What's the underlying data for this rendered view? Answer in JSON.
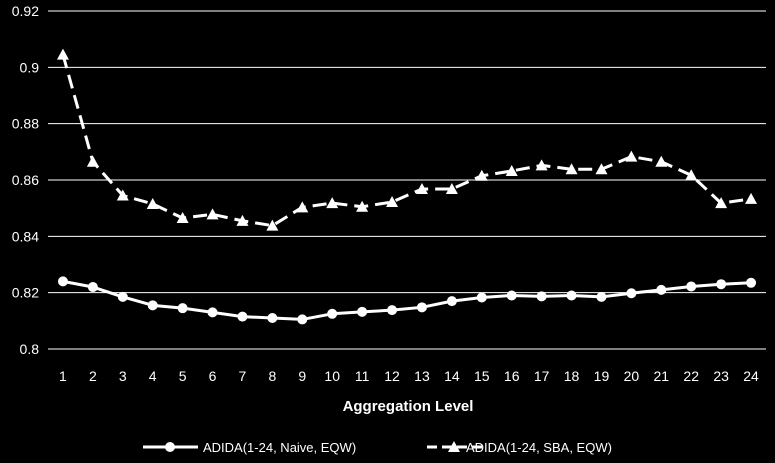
{
  "chart_data": {
    "type": "line",
    "title": "",
    "xlabel": "Aggregation Level",
    "ylabel": "",
    "x": [
      1,
      2,
      3,
      4,
      5,
      6,
      7,
      8,
      9,
      10,
      11,
      12,
      13,
      14,
      15,
      16,
      17,
      18,
      19,
      20,
      21,
      22,
      23,
      24
    ],
    "ylim": [
      0.8,
      0.92
    ],
    "yticks": [
      "0.8",
      "0.82",
      "0.84",
      "0.86",
      "0.88",
      "0.9",
      "0.92"
    ],
    "grid": "horizontal",
    "legend_position": "bottom",
    "series": [
      {
        "name": "ADIDA(1-24, Naive, EQW)",
        "marker": "circle",
        "line_style": "solid",
        "color": "#ffffff",
        "values": [
          0.824,
          0.822,
          0.8185,
          0.8155,
          0.8145,
          0.813,
          0.8115,
          0.811,
          0.8105,
          0.8125,
          0.8132,
          0.8138,
          0.8148,
          0.817,
          0.8183,
          0.819,
          0.8187,
          0.819,
          0.8185,
          0.8198,
          0.821,
          0.8222,
          0.823,
          0.8235
        ]
      },
      {
        "name": "ADIDA(1-24, SBA, EQW)",
        "marker": "triangle",
        "line_style": "dashed",
        "color": "#ffffff",
        "values": [
          0.9045,
          0.8665,
          0.8545,
          0.8515,
          0.8465,
          0.8478,
          0.8455,
          0.8438,
          0.8503,
          0.8518,
          0.8505,
          0.8522,
          0.8568,
          0.8568,
          0.8615,
          0.8632,
          0.8652,
          0.8638,
          0.8638,
          0.8683,
          0.8665,
          0.8617,
          0.8518,
          0.8533
        ]
      }
    ]
  }
}
